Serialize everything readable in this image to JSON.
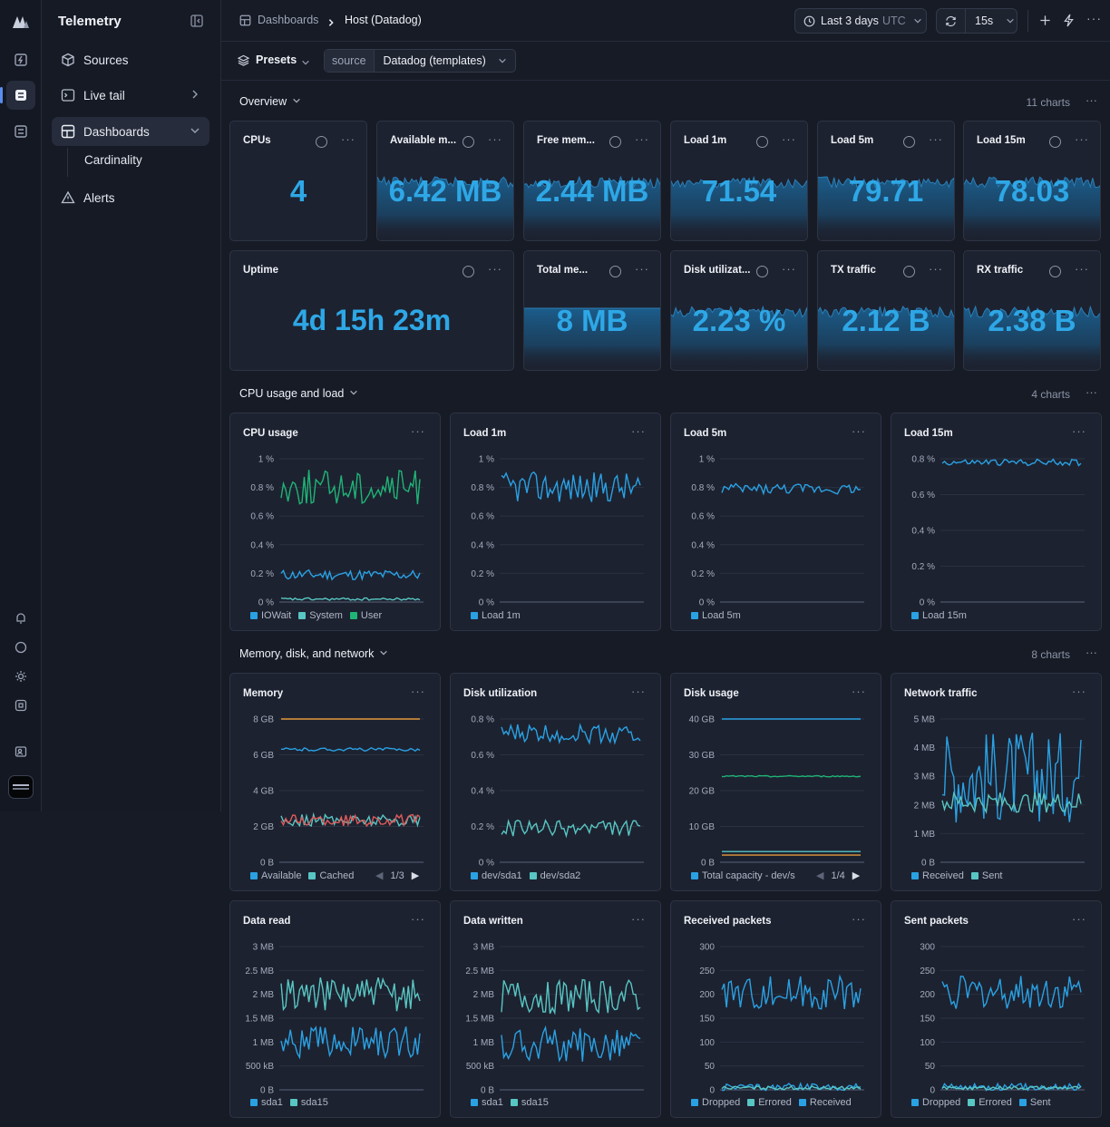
{
  "app": {
    "title": "Telemetry"
  },
  "nav": {
    "items": [
      {
        "label": "Sources",
        "icon": "cube-icon"
      },
      {
        "label": "Live tail",
        "icon": "terminal-icon"
      },
      {
        "label": "Dashboards",
        "icon": "dashboard-icon"
      },
      {
        "label": "Alerts",
        "icon": "alert-triangle-icon"
      }
    ],
    "sub_items": [
      {
        "label": "Cardinality"
      }
    ]
  },
  "breadcrumb": {
    "root": "Dashboards",
    "current": "Host (Datadog)"
  },
  "toolbar": {
    "time_range": "Last 3 days",
    "timezone": "UTC",
    "refresh_interval": "15s"
  },
  "presets": {
    "label": "Presets",
    "source_key": "source",
    "source_value": "Datadog (templates)"
  },
  "sections": {
    "overview": {
      "title": "Overview",
      "count": "11 charts"
    },
    "cpu": {
      "title": "CPU usage and load",
      "count": "4 charts"
    },
    "mem": {
      "title": "Memory, disk, and network",
      "count": "8 charts"
    }
  },
  "stats": [
    {
      "title": "CPUs",
      "value": "4",
      "spark": false
    },
    {
      "title": "Available m...",
      "value": "6.42 MB",
      "spark": true
    },
    {
      "title": "Free mem...",
      "value": "2.44 MB",
      "spark": true
    },
    {
      "title": "Load 1m",
      "value": "71.54",
      "spark": true
    },
    {
      "title": "Load 5m",
      "value": "79.71",
      "spark": true
    },
    {
      "title": "Load 15m",
      "value": "78.03",
      "spark": true
    },
    {
      "title": "Uptime",
      "value": "4d 15h 23m",
      "spark": false
    },
    {
      "title": "Total me...",
      "value": "8 MB",
      "spark": true
    },
    {
      "title": "Disk utilizat...",
      "value": "2.23 %",
      "spark": true
    },
    {
      "title": "TX traffic",
      "value": "2.12 B",
      "spark": true
    },
    {
      "title": "RX traffic",
      "value": "2.38 B",
      "spark": true
    }
  ],
  "colors": {
    "blue": "#2aa1e3",
    "teal": "#58c6c3",
    "green": "#1fb476",
    "orange": "#e39a3b",
    "red": "#e05a5a"
  },
  "chart_data": [
    {
      "type": "line",
      "title": "CPU usage",
      "yticks": [
        "1 %",
        "0.8 %",
        "0.6 %",
        "0.4 %",
        "0.2 %",
        "0 %"
      ],
      "ylim": [
        0,
        1
      ],
      "series": [
        {
          "name": "IOWait",
          "color": "#2aa1e3",
          "level": 0.19,
          "amp": 0.02
        },
        {
          "name": "System",
          "color": "#58c6c3",
          "level": 0.02,
          "amp": 0.005
        },
        {
          "name": "User",
          "color": "#1fb476",
          "level": 0.8,
          "amp": 0.07
        }
      ]
    },
    {
      "type": "line",
      "title": "Load 1m",
      "yticks": [
        "1 %",
        "0.8 %",
        "0.6 %",
        "0.4 %",
        "0.2 %",
        "0 %"
      ],
      "ylim": [
        0,
        1
      ],
      "series": [
        {
          "name": "Load 1m",
          "color": "#2aa1e3",
          "level": 0.8,
          "amp": 0.06
        }
      ]
    },
    {
      "type": "line",
      "title": "Load 5m",
      "yticks": [
        "1 %",
        "0.8 %",
        "0.6 %",
        "0.4 %",
        "0.2 %",
        "0 %"
      ],
      "ylim": [
        0,
        1
      ],
      "series": [
        {
          "name": "Load 5m",
          "color": "#2aa1e3",
          "level": 0.79,
          "amp": 0.02
        }
      ]
    },
    {
      "type": "line",
      "title": "Load 15m",
      "yticks": [
        "0.8 %",
        "0.6 %",
        "0.4 %",
        "0.2 %",
        "0 %"
      ],
      "ylim": [
        0,
        0.8
      ],
      "series": [
        {
          "name": "Load 15m",
          "color": "#2aa1e3",
          "level": 0.78,
          "amp": 0.01
        }
      ]
    },
    {
      "type": "line",
      "title": "Memory",
      "yticks": [
        "8 GB",
        "6 GB",
        "4 GB",
        "2 GB",
        "0 B"
      ],
      "ylim": [
        0,
        8
      ],
      "pager": "1/3",
      "series": [
        {
          "name": "Available",
          "color": "#2aa1e3",
          "level": 6.3,
          "amp": 0.05
        },
        {
          "name": "Cached",
          "color": "#58c6c3",
          "level": 2.35,
          "amp": 0.18
        },
        {
          "color": "#e39a3b",
          "level": 8,
          "amp": 0
        },
        {
          "color": "#e05a5a",
          "level": 2.35,
          "amp": 0.18
        }
      ]
    },
    {
      "type": "line",
      "title": "Disk utilization",
      "yticks": [
        "0.8 %",
        "0.6 %",
        "0.4 %",
        "0.2 %",
        "0 %"
      ],
      "ylim": [
        0,
        0.8
      ],
      "series": [
        {
          "name": "dev/sda1",
          "color": "#2aa1e3",
          "level": 0.72,
          "amp": 0.03
        },
        {
          "name": "dev/sda2",
          "color": "#58c6c3",
          "level": 0.19,
          "amp": 0.025
        }
      ]
    },
    {
      "type": "line",
      "title": "Disk usage",
      "yticks": [
        "40 GB",
        "30 GB",
        "20 GB",
        "10 GB",
        "0 B"
      ],
      "ylim": [
        0,
        40
      ],
      "pager": "1/4",
      "series": [
        {
          "name": "Total capacity - dev/s",
          "color": "#2aa1e3",
          "level": 40,
          "amp": 0
        },
        {
          "color": "#1fb476",
          "level": 24,
          "amp": 0.1
        },
        {
          "color": "#e39a3b",
          "level": 2,
          "amp": 0
        },
        {
          "color": "#58c6c3",
          "level": 3,
          "amp": 0
        }
      ]
    },
    {
      "type": "line",
      "title": "Network traffic",
      "yticks": [
        "5 MB",
        "4 MB",
        "3 MB",
        "2 MB",
        "1 MB",
        "0 B"
      ],
      "ylim": [
        0,
        5
      ],
      "series": [
        {
          "name": "Received",
          "color": "#2aa1e3",
          "level": 3,
          "amp": 0.9
        },
        {
          "name": "Sent",
          "color": "#58c6c3",
          "level": 2.1,
          "amp": 0.2
        }
      ]
    },
    {
      "type": "line",
      "title": "Data read",
      "yticks": [
        "3 MB",
        "2.5 MB",
        "2 MB",
        "1.5 MB",
        "1 MB",
        "500 kB",
        "0 B"
      ],
      "ylim": [
        0,
        3
      ],
      "series": [
        {
          "name": "sda1",
          "color": "#2aa1e3",
          "level": 1.0,
          "amp": 0.18
        },
        {
          "name": "sda15",
          "color": "#58c6c3",
          "level": 2.0,
          "amp": 0.2
        }
      ]
    },
    {
      "type": "line",
      "title": "Data written",
      "yticks": [
        "3 MB",
        "2.5 MB",
        "2 MB",
        "1.5 MB",
        "1 MB",
        "500 kB",
        "0 B"
      ],
      "ylim": [
        0,
        3
      ],
      "series": [
        {
          "name": "sda1",
          "color": "#2aa1e3",
          "level": 0.95,
          "amp": 0.2
        },
        {
          "name": "sda15",
          "color": "#58c6c3",
          "level": 1.95,
          "amp": 0.2
        }
      ]
    },
    {
      "type": "line",
      "title": "Received packets",
      "yticks": [
        "300",
        "250",
        "200",
        "150",
        "100",
        "50",
        "0"
      ],
      "ylim": [
        0,
        300
      ],
      "series": [
        {
          "name": "Dropped",
          "color": "#2aa1e3",
          "level": 6,
          "amp": 4
        },
        {
          "name": "Errored",
          "color": "#58c6c3",
          "level": 4,
          "amp": 2
        },
        {
          "name": "Received",
          "color": "#2aa1e3",
          "level": 205,
          "amp": 20
        }
      ]
    },
    {
      "type": "line",
      "title": "Sent packets",
      "yticks": [
        "300",
        "250",
        "200",
        "150",
        "100",
        "50",
        "0"
      ],
      "ylim": [
        0,
        300
      ],
      "series": [
        {
          "name": "Dropped",
          "color": "#2aa1e3",
          "level": 6,
          "amp": 4
        },
        {
          "name": "Errored",
          "color": "#58c6c3",
          "level": 4,
          "amp": 2
        },
        {
          "name": "Sent",
          "color": "#2aa1e3",
          "level": 205,
          "amp": 20
        }
      ]
    }
  ]
}
